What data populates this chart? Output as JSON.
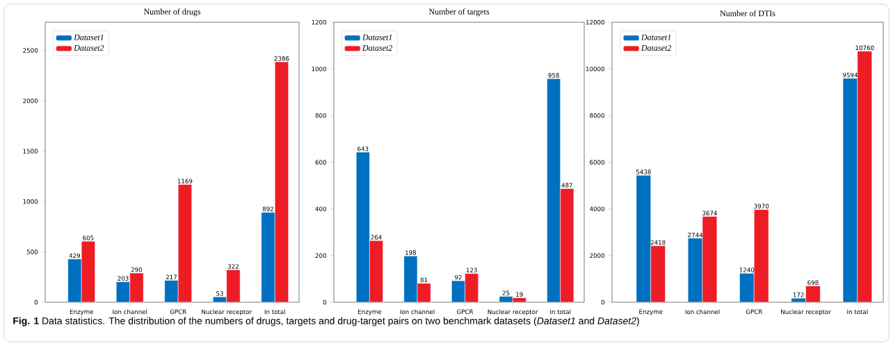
{
  "chart_data": [
    {
      "type": "bar",
      "title": "Number of drugs",
      "categories": [
        "Enzyme",
        "Ion channel",
        "GPCR",
        "Nuclear receptor",
        "In total"
      ],
      "ylim": [
        0,
        2780
      ],
      "yticks": [
        0,
        500,
        1000,
        1500,
        2000,
        2500
      ],
      "data_labels": true,
      "legend": "top left",
      "series": [
        {
          "name": "Dataset1",
          "color": "#0070c0",
          "values": [
            429,
            203,
            217,
            53,
            892
          ]
        },
        {
          "name": "Dataset2",
          "color": "#ee1c25",
          "values": [
            605,
            290,
            1169,
            322,
            2386
          ]
        }
      ],
      "annotations": [
        "**Fig. 1** Data statistics. The distribution of the numbers of drugs, targets and drug-target pairs on two benchmark datasets (*Dataset1* and *Dataset2*)"
      ]
    },
    {
      "type": "bar",
      "title": "Number of targets",
      "categories": [
        "Enzyme",
        "Ion channel",
        "GPCR",
        "Nuclear receptor",
        "In total"
      ],
      "ylim": [
        0,
        1200
      ],
      "yticks": [
        0,
        200,
        400,
        600,
        800,
        1000,
        1200
      ],
      "data_labels": true,
      "legend": "top left",
      "series": [
        {
          "name": "Dataset1",
          "color": "#0070c0",
          "values": [
            643,
            198,
            92,
            25,
            958
          ]
        },
        {
          "name": "Dataset2",
          "color": "#ee1c25",
          "values": [
            264,
            81,
            123,
            19,
            487
          ]
        }
      ]
    },
    {
      "type": "bar",
      "title": "Number of DTIs",
      "categories": [
        "Enzyme",
        "Ion channel",
        "GPCR",
        "Nuclear receptor",
        "In total"
      ],
      "ylim": [
        0,
        12000
      ],
      "yticks": [
        0,
        2000,
        4000,
        6000,
        8000,
        10000,
        12000
      ],
      "data_labels": true,
      "legend": "top left",
      "series": [
        {
          "name": "Dataset1",
          "color": "#0070c0",
          "values": [
            5438,
            2744,
            1240,
            172,
            9594
          ]
        },
        {
          "name": "Dataset2",
          "color": "#ee1c25",
          "values": [
            2418,
            3674,
            3970,
            698,
            10760
          ]
        }
      ]
    }
  ]
}
